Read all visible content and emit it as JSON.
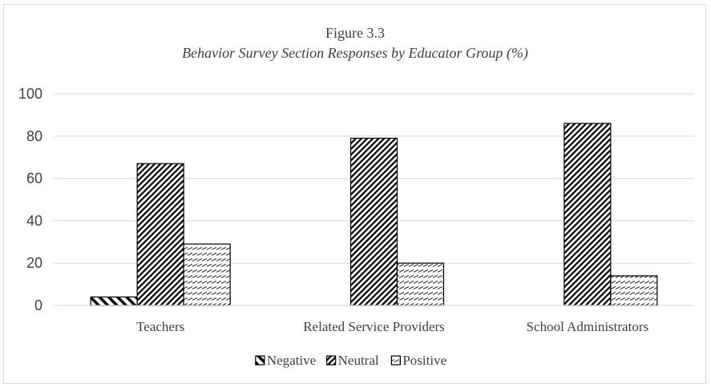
{
  "chart_data": {
    "type": "bar",
    "title": "Figure 3.3",
    "subtitle": "Behavior Survey Section Responses by Educator Group (%)",
    "categories": [
      "Teachers",
      "Related Service Providers",
      "School Administrators"
    ],
    "series": [
      {
        "name": "Negative",
        "values": [
          4,
          0,
          0
        ],
        "pattern": "negative"
      },
      {
        "name": "Neutral",
        "values": [
          67,
          79,
          86
        ],
        "pattern": "neutral"
      },
      {
        "name": "Positive",
        "values": [
          29,
          20,
          14
        ],
        "pattern": "positive"
      }
    ],
    "ylim": [
      0,
      100
    ],
    "yticks": [
      0,
      20,
      40,
      60,
      80,
      100
    ],
    "grid": true,
    "legend": "bottom",
    "colors": {
      "axis": "#d9d9d9",
      "bar_stroke": "#000000",
      "text": "#404040"
    }
  }
}
